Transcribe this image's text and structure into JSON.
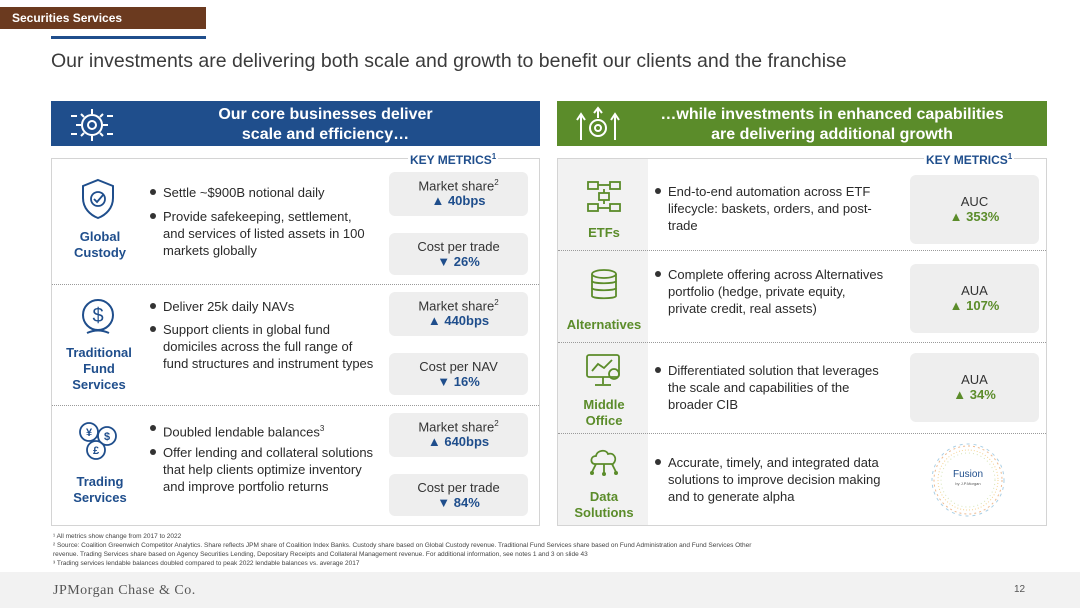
{
  "header": {
    "section_tag": "Securities Services",
    "title": "Our investments are delivering both scale and growth to benefit our clients and the franchise"
  },
  "left": {
    "heading_line1": "Our core businesses deliver",
    "heading_line2": "scale and efficiency…",
    "key_metrics_label": "KEY METRICS",
    "key_metrics_sup": "1",
    "rows": [
      {
        "label_lines": [
          "Global",
          "Custody"
        ],
        "icon": "shield-check-icon",
        "bullets": [
          "Settle ~$900B notional daily",
          "Provide safekeeping, settlement, and services of listed assets in 100 markets globally"
        ],
        "metrics": [
          {
            "name": "Market share",
            "sup": "2",
            "value": "▲ 40bps"
          },
          {
            "name": "Cost per trade",
            "sup": "",
            "value": "▼ 26%"
          }
        ]
      },
      {
        "label_lines": [
          "Traditional",
          "Fund",
          "Services"
        ],
        "icon": "dollar-hand-icon",
        "bullets": [
          "Deliver 25k daily NAVs",
          "Support clients in global fund domiciles across the full range of fund structures and instrument types"
        ],
        "metrics": [
          {
            "name": "Market share",
            "sup": "2",
            "value": "▲ 440bps"
          },
          {
            "name": "Cost per NAV",
            "sup": "",
            "value": "▼ 16%"
          }
        ]
      },
      {
        "label_lines": [
          "Trading",
          "Services"
        ],
        "icon": "currency-exchange-icon",
        "bullets": [
          "Doubled lendable balances",
          "Offer lending and collateral solutions that help clients optimize inventory and improve portfolio returns"
        ],
        "bullet_sups": [
          "3",
          ""
        ],
        "metrics": [
          {
            "name": "Market share",
            "sup": "2",
            "value": "▲ 640bps"
          },
          {
            "name": "Cost per trade",
            "sup": "",
            "value": "▼ 84%"
          }
        ]
      }
    ]
  },
  "right": {
    "heading_line1": "…while investments in enhanced capabilities",
    "heading_line2": "are delivering additional growth",
    "key_metrics_label": "KEY METRICS",
    "key_metrics_sup": "1",
    "rows": [
      {
        "label_lines": [
          "ETFs"
        ],
        "icon": "flow-diagram-icon",
        "bullet": "End-to-end automation across ETF lifecycle: baskets, orders, and post-trade",
        "metric": {
          "name": "AUC",
          "value": "▲ 353%"
        }
      },
      {
        "label_lines": [
          "Alternatives"
        ],
        "icon": "database-icon",
        "bullet": "Complete offering across Alternatives portfolio (hedge, private equity, private credit, real assets)",
        "metric": {
          "name": "AUA",
          "value": "▲ 107%"
        }
      },
      {
        "label_lines": [
          "Middle",
          "Office"
        ],
        "icon": "monitor-analytics-icon",
        "bullet": "Differentiated solution that leverages the scale and capabilities of the broader CIB",
        "metric": {
          "name": "AUA",
          "value": "▲ 34%"
        }
      },
      {
        "label_lines": [
          "Data",
          "Solutions"
        ],
        "icon": "network-cloud-icon",
        "bullet": "Accurate, timely, and integrated data solutions to improve decision making and to generate alpha",
        "logo_text": "Fusion",
        "logo_sub": "by J.P.Morgan"
      }
    ]
  },
  "footnotes": [
    "¹ All metrics show change from 2017 to 2022",
    "² Source: Coalition Greenwich Competitor Analytics. Share reflects JPM share of Coalition Index Banks. Custody share based on Global Custody revenue. Traditional Fund Services share based on Fund Administration and Fund Services Other",
    "revenue. Trading Services share based on Agency Securities Lending, Depositary Receipts and Collateral Management revenue. For additional information, see notes 1 and 3 on slide 43",
    "³ Trading services lendable balances doubled compared to peak 2022 lendable balances vs. average 2017"
  ],
  "footer": {
    "logo": "JPMorgan Chase & Co.",
    "page_number": "12"
  },
  "colors": {
    "blue": "#1f4e8c",
    "green": "#5b8c2a",
    "brown": "#6b3a1f"
  }
}
